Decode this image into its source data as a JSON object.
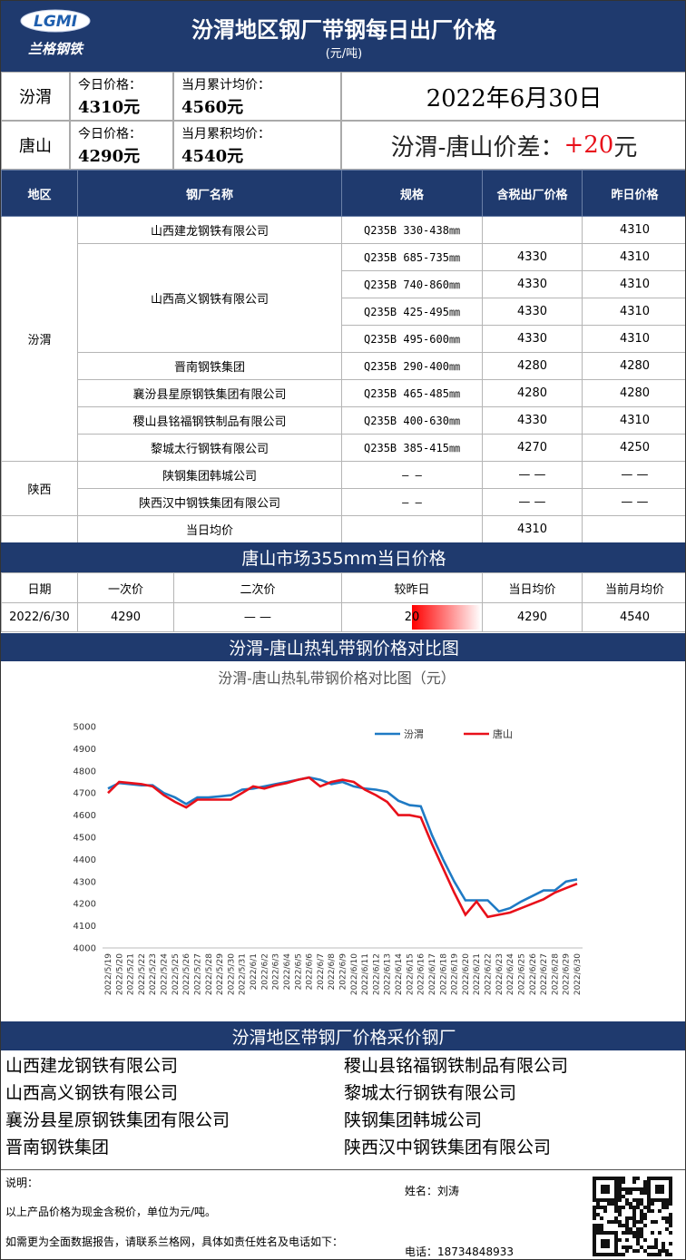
{
  "header": {
    "logo": {
      "mark": "LGMI",
      "name": "兰格钢铁"
    },
    "title": "汾渭地区钢厂带钢每日出厂价格",
    "unit": "(元/吨)"
  },
  "summary": {
    "rows": [
      {
        "region": "汾渭",
        "today_label": "今日价格：",
        "today": "4310元",
        "month_label": "当月累计均价：",
        "month": "4560元"
      },
      {
        "region": "唐山",
        "today_label": "今日价格：",
        "today": "4290元",
        "month_label": "当月累积均价：",
        "month": "4540元"
      }
    ],
    "date": "2022年6月30日",
    "spread": {
      "label": "汾渭-唐山价差：",
      "value": "+20",
      "unit": "元"
    }
  },
  "price_table": {
    "headers": [
      "地区",
      "钢厂名称",
      "规格",
      "含税出厂价格",
      "昨日价格"
    ],
    "regions": [
      {
        "name": "汾渭",
        "mills": [
          {
            "name": "山西建龙钢铁有限公司",
            "items": [
              {
                "spec": "Q235B 330-438㎜",
                "yesterday": 4310
              }
            ]
          },
          {
            "name": "山西高义钢铁有限公司",
            "items": [
              {
                "spec": "Q235B 685-735㎜",
                "price": 4330,
                "yesterday": 4310
              },
              {
                "spec": "Q235B 740-860㎜",
                "price": 4330,
                "yesterday": 4310
              },
              {
                "spec": "Q235B 425-495㎜",
                "price": 4330,
                "yesterday": 4310
              },
              {
                "spec": "Q235B 495-600㎜",
                "price": 4330,
                "yesterday": 4310
              }
            ]
          },
          {
            "name": "晋南钢铁集团",
            "items": [
              {
                "spec": "Q235B 290-400㎜",
                "price": 4280,
                "yesterday": 4280
              }
            ]
          },
          {
            "name": "襄汾县星原钢铁集团有限公司",
            "items": [
              {
                "spec": "Q235B 465-485㎜",
                "price": 4280,
                "yesterday": 4280
              }
            ]
          },
          {
            "name": "稷山县铭福钢铁制品有限公司",
            "items": [
              {
                "spec": "Q235B 400-630㎜",
                "price": 4330,
                "yesterday": 4310
              }
            ]
          },
          {
            "name": "黎城太行钢铁有限公司",
            "items": [
              {
                "spec": "Q235B 385-415㎜",
                "price": 4270,
                "yesterday": 4250
              }
            ]
          }
        ]
      },
      {
        "name": "陕西",
        "mills": [
          {
            "name": "陕钢集团韩城公司",
            "items": [
              {
                "spec": "— —",
                "price": "— —",
                "yesterday": "— —"
              }
            ]
          },
          {
            "name": "陕西汉中钢铁集团有限公司",
            "items": [
              {
                "spec": "— —",
                "price": "— —",
                "yesterday": "— —"
              }
            ]
          }
        ]
      }
    ],
    "average": {
      "label": "当日均价",
      "value": 4310
    }
  },
  "tangshan": {
    "title": "唐山市场355mm当日价格",
    "headers": [
      "日期",
      "一次价",
      "二次价",
      "较昨日",
      "当日均价",
      "当前月均价"
    ],
    "row": {
      "date": "2022/6/30",
      "first": 4290,
      "second": "— —",
      "change": 20,
      "average": 4290,
      "month_average": 4540
    }
  },
  "chart_section": {
    "title": "汾渭-唐山热轧带钢价格对比图"
  },
  "chart_data": {
    "type": "line",
    "title": "汾渭-唐山热轧带钢价格对比图（元）",
    "categories": [
      "2022/5/19",
      "2022/5/20",
      "2022/5/21",
      "2022/5/22",
      "2022/5/23",
      "2022/5/24",
      "2022/5/25",
      "2022/5/26",
      "2022/5/27",
      "2022/5/28",
      "2022/5/29",
      "2022/5/30",
      "2022/5/31",
      "2022/6/1",
      "2022/6/2",
      "2022/6/3",
      "2022/6/4",
      "2022/6/5",
      "2022/6/6",
      "2022/6/7",
      "2022/6/8",
      "2022/6/9",
      "2022/6/10",
      "2022/6/11",
      "2022/6/12",
      "2022/6/13",
      "2022/6/14",
      "2022/6/15",
      "2022/6/16",
      "2022/6/17",
      "2022/6/18",
      "2022/6/19",
      "2022/6/20",
      "2022/6/21",
      "2022/6/22",
      "2022/6/23",
      "2022/6/24",
      "2022/6/25",
      "2022/6/26",
      "2022/6/27",
      "2022/6/28",
      "2022/6/29",
      "2022/6/30"
    ],
    "series": [
      {
        "name": "汾渭",
        "color": "#1f7ac4",
        "values": [
          4720,
          4745,
          4740,
          4735,
          4735,
          4700,
          4680,
          4650,
          4680,
          4680,
          4685,
          4690,
          4715,
          4720,
          4730,
          4740,
          4750,
          4760,
          4770,
          4760,
          4740,
          4750,
          4730,
          4720,
          4715,
          4705,
          4665,
          4645,
          4640,
          4510,
          4400,
          4300,
          4215,
          4215,
          4215,
          4165,
          4180,
          4210,
          4235,
          4260,
          4260,
          4300,
          4310
        ]
      },
      {
        "name": "唐山",
        "color": "#e8101a",
        "values": [
          4700,
          4750,
          4745,
          4740,
          4730,
          4690,
          4660,
          4635,
          4670,
          4670,
          4670,
          4670,
          4700,
          4730,
          4720,
          4735,
          4745,
          4760,
          4770,
          4730,
          4750,
          4760,
          4750,
          4715,
          4690,
          4660,
          4600,
          4600,
          4590,
          4470,
          4360,
          4250,
          4150,
          4210,
          4140,
          4150,
          4160,
          4180,
          4200,
          4220,
          4250,
          4270,
          4290
        ]
      }
    ],
    "ylim": [
      4000,
      5000
    ],
    "yticks": [
      4000,
      4100,
      4200,
      4300,
      4400,
      4500,
      4600,
      4700,
      4800,
      4900,
      5000
    ],
    "grid": false,
    "legend": "top"
  },
  "mills_section": {
    "title": "汾渭地区带钢厂价格采价钢厂",
    "left": [
      "山西建龙钢铁有限公司",
      "山西高义钢铁有限公司",
      "襄汾县星原钢铁集团有限公司",
      "晋南钢铁集团"
    ],
    "right": [
      "稷山县铭福钢铁制品有限公司",
      "黎城太行钢铁有限公司",
      "陕钢集团韩城公司",
      "陕西汉中钢铁集团有限公司"
    ]
  },
  "footer": {
    "note_title": "说明：",
    "note": "以上产品价格为现金含税价，单位为元/吨。",
    "contact_note": "如需更为全面数据报告，请联系兰格网，具体如责任姓名及电话如下：",
    "name": "姓名：刘涛",
    "phone": "电话：18734848933"
  }
}
